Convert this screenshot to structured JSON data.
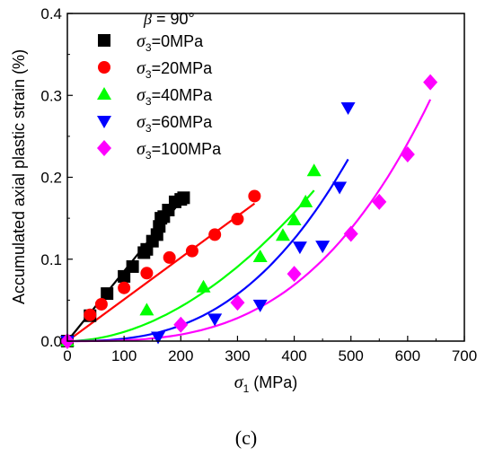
{
  "chart_data": {
    "type": "scatter",
    "annotation": {
      "symbol": "β",
      "text": " = 90°"
    },
    "xlabel": {
      "symbol": "σ",
      "sub": "1",
      "text": " (MPa)"
    },
    "ylabel": "Accumulated axial plastic strain (%)",
    "xlim": [
      0,
      700
    ],
    "ylim": [
      0.0,
      0.4
    ],
    "xticks": [
      0,
      100,
      200,
      300,
      400,
      500,
      600,
      700
    ],
    "yticks": [
      0.0,
      0.1,
      0.2,
      0.3,
      0.4
    ],
    "ytick_labels": [
      "0.0",
      "0.1",
      "0.2",
      "0.3",
      "0.4"
    ],
    "grid": false,
    "legend_position": "top-left",
    "panel_label": "(c)",
    "series": [
      {
        "name": "σ3=0MPa",
        "legend_symbol": "σ",
        "legend_sub": "3",
        "legend_text": "=0MPa",
        "marker": "square",
        "color": "#000000",
        "points": [
          [
            0,
            0.0
          ],
          [
            40,
            0.031
          ],
          [
            70,
            0.058
          ],
          [
            100,
            0.079
          ],
          [
            115,
            0.091
          ],
          [
            135,
            0.108
          ],
          [
            140,
            0.112
          ],
          [
            150,
            0.122
          ],
          [
            158,
            0.13
          ],
          [
            162,
            0.14
          ],
          [
            165,
            0.15
          ],
          [
            170,
            0.152
          ],
          [
            178,
            0.16
          ],
          [
            190,
            0.17
          ],
          [
            200,
            0.173
          ],
          [
            205,
            0.175
          ]
        ],
        "fit": [
          [
            0,
            0.0
          ],
          [
            205,
            0.175
          ]
        ]
      },
      {
        "name": "σ3=20MPa",
        "legend_symbol": "σ",
        "legend_sub": "3",
        "legend_text": "=20MPa",
        "marker": "circle",
        "color": "#ff0000",
        "points": [
          [
            0,
            0.0
          ],
          [
            40,
            0.032
          ],
          [
            60,
            0.045
          ],
          [
            100,
            0.065
          ],
          [
            140,
            0.083
          ],
          [
            180,
            0.102
          ],
          [
            220,
            0.11
          ],
          [
            260,
            0.13
          ],
          [
            300,
            0.149
          ],
          [
            330,
            0.177
          ]
        ],
        "fit": [
          [
            0,
            0.0
          ],
          [
            330,
            0.168
          ]
        ]
      },
      {
        "name": "σ3=40MPa",
        "legend_symbol": "σ",
        "legend_sub": "3",
        "legend_text": "=40MPa",
        "marker": "triangle-up",
        "color": "#00ff00",
        "points": [
          [
            0,
            0.0
          ],
          [
            140,
            0.038
          ],
          [
            240,
            0.066
          ],
          [
            340,
            0.103
          ],
          [
            380,
            0.129
          ],
          [
            400,
            0.148
          ],
          [
            420,
            0.17
          ],
          [
            435,
            0.208
          ]
        ],
        "fit_curve": {
          "a": 0.184,
          "x0": 435,
          "p": 1.9
        }
      },
      {
        "name": "σ3=60MPa",
        "legend_symbol": "σ",
        "legend_sub": "3",
        "legend_text": "=60MPa",
        "marker": "triangle-down",
        "color": "#0000ff",
        "points": [
          [
            0,
            0.0
          ],
          [
            160,
            0.005
          ],
          [
            260,
            0.027
          ],
          [
            340,
            0.044
          ],
          [
            410,
            0.115
          ],
          [
            450,
            0.116
          ],
          [
            480,
            0.188
          ],
          [
            495,
            0.285
          ]
        ],
        "fit_curve": {
          "a": 0.222,
          "x0": 495,
          "p": 2.7
        }
      },
      {
        "name": "σ3=100MPa",
        "legend_symbol": "σ",
        "legend_sub": "3",
        "legend_text": "=100MPa",
        "marker": "diamond",
        "color": "#ff00ff",
        "points": [
          [
            0,
            0.0
          ],
          [
            200,
            0.02
          ],
          [
            300,
            0.047
          ],
          [
            400,
            0.082
          ],
          [
            500,
            0.131
          ],
          [
            550,
            0.17
          ],
          [
            600,
            0.228
          ],
          [
            640,
            0.316
          ]
        ],
        "fit_curve": {
          "a": 0.295,
          "x0": 640,
          "p": 3.1
        }
      }
    ]
  }
}
